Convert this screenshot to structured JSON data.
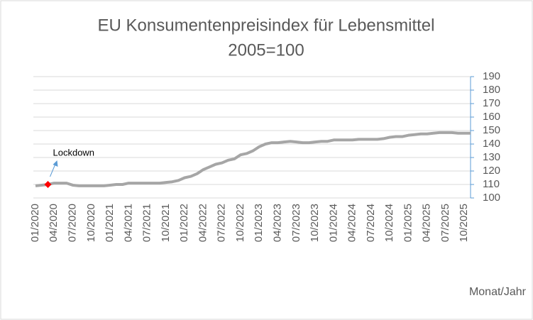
{
  "chart_data": {
    "type": "line",
    "title": "EU Konsumentenpreisindex  für Lebensmittel",
    "subtitle": "2005=100",
    "x_label": "Monat/Jahr",
    "categories": [
      "01/2020",
      null,
      null,
      "04/2020",
      null,
      null,
      "07/2020",
      null,
      null,
      "10/2020",
      null,
      null,
      "01/2021",
      null,
      null,
      "04/2021",
      null,
      null,
      "07/2021",
      null,
      null,
      "10/2021",
      null,
      null,
      "01/2022",
      null,
      null,
      "04/2022",
      null,
      null,
      "07/2022",
      null,
      null,
      "10/2022",
      null,
      null,
      "01/2023",
      null,
      null,
      "04/2023",
      null,
      null,
      "07/2023",
      null,
      null,
      "10/2023",
      null,
      null,
      "01/2024",
      null,
      null,
      "04/2024",
      null,
      null,
      "07/2024",
      null,
      null,
      "10/2024",
      null,
      null,
      "01/2025",
      null,
      null,
      "04/2025",
      null,
      null,
      "07/2025",
      null,
      null,
      "10/2025",
      null
    ],
    "series": [
      {
        "name": "EU Konsumentenpreisindex",
        "color": "#a6a6a6",
        "values": [
          109,
          109.5,
          110,
          111,
          111,
          111,
          109.5,
          109,
          109,
          109,
          109,
          109,
          109.5,
          110,
          110,
          111,
          111,
          111,
          111,
          111,
          111,
          111.5,
          112,
          113,
          115,
          116,
          118,
          121,
          123,
          125,
          126,
          128,
          129,
          132,
          133,
          135,
          138,
          140,
          141,
          141,
          141.5,
          142,
          141.5,
          141,
          141,
          141.5,
          142,
          142,
          143,
          143,
          143,
          143,
          143.5,
          143.5,
          143.5,
          143.5,
          144,
          145,
          145.5,
          145.5,
          146.5,
          147,
          147.5,
          147.5,
          148,
          148.5,
          148.5,
          148.5,
          148,
          148,
          148
        ]
      },
      {
        "name": "Lockdown",
        "color": "#ff0000",
        "values": [
          null,
          null,
          110,
          null,
          null,
          null,
          null,
          null,
          null,
          null,
          null,
          null,
          null,
          null,
          null,
          null,
          null,
          null,
          null,
          null,
          null,
          null,
          null,
          null,
          null,
          null,
          null,
          null,
          null,
          null,
          null,
          null,
          null,
          null,
          null,
          null,
          null,
          null,
          null,
          null,
          null,
          null,
          null,
          null,
          null,
          null,
          null,
          null,
          null,
          null,
          null,
          null,
          null,
          null,
          null,
          null,
          null,
          null,
          null,
          null,
          null,
          null,
          null,
          null,
          null,
          null,
          null,
          null,
          null,
          null,
          null
        ]
      }
    ],
    "ylim": [
      100,
      190
    ],
    "yticks": [
      100,
      110,
      120,
      130,
      140,
      150,
      160,
      170,
      180,
      190
    ],
    "y_axis_side": "right",
    "grid": true
  }
}
